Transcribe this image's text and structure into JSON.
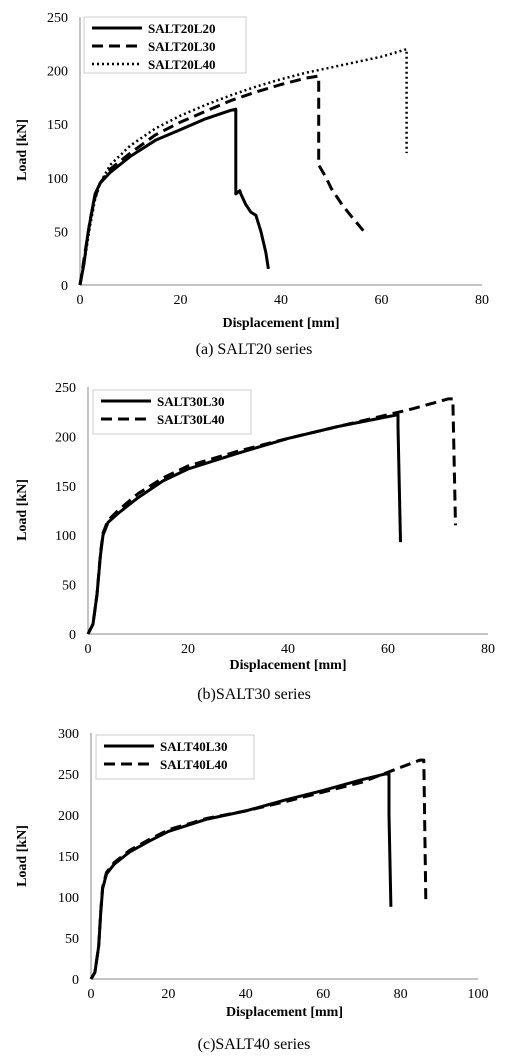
{
  "chart_data": [
    {
      "type": "line",
      "caption": "(a) SALT20 series",
      "xlabel": "Displacement [mm]",
      "ylabel": "Load [kN]",
      "xlim": [
        0,
        80
      ],
      "ylim": [
        0,
        250
      ],
      "xticks": [
        "0",
        "20",
        "40",
        "60",
        "80"
      ],
      "yticks": [
        "0",
        "50",
        "100",
        "150",
        "200",
        "250"
      ],
      "grid": false,
      "legend_position": "top-left",
      "series": [
        {
          "name": "SALT20L20",
          "style": "solid",
          "x": [
            0,
            0.8,
            1.5,
            2.2,
            3,
            4,
            6,
            10,
            15,
            20,
            25,
            30,
            31,
            31,
            31.8,
            32,
            33,
            34,
            35,
            36,
            37,
            37.5
          ],
          "y": [
            0,
            20,
            45,
            65,
            85,
            95,
            105,
            120,
            135,
            145,
            155,
            163,
            164,
            85,
            88,
            85,
            75,
            68,
            65,
            50,
            30,
            15
          ]
        },
        {
          "name": "SALT20L30",
          "style": "dashed",
          "x": [
            0,
            1,
            2,
            3,
            4,
            6,
            10,
            15,
            20,
            25,
            30,
            35,
            40,
            45,
            47.5,
            47.5,
            48,
            49,
            50,
            52,
            54,
            56.5
          ],
          "y": [
            0,
            30,
            60,
            82,
            95,
            108,
            123,
            140,
            152,
            162,
            172,
            180,
            187,
            193,
            195,
            112,
            108,
            100,
            90,
            76,
            64,
            50
          ]
        },
        {
          "name": "SALT20L40",
          "style": "dotted",
          "x": [
            0,
            1,
            2,
            3,
            4,
            6,
            10,
            15,
            20,
            25,
            30,
            35,
            40,
            45,
            50,
            55,
            60,
            65,
            65,
            65
          ],
          "y": [
            0,
            25,
            55,
            80,
            95,
            112,
            130,
            146,
            158,
            168,
            177,
            185,
            192,
            198,
            203,
            208,
            213,
            220,
            220,
            123
          ]
        }
      ]
    },
    {
      "type": "line",
      "caption": "(b)SALT30 series",
      "xlabel": "Displacement [mm]",
      "ylabel": "Load [kN]",
      "xlim": [
        0,
        80
      ],
      "ylim": [
        0,
        250
      ],
      "xticks": [
        "0",
        "20",
        "40",
        "60",
        "80"
      ],
      "yticks": [
        "0",
        "50",
        "100",
        "150",
        "200",
        "250"
      ],
      "grid": false,
      "legend_position": "top-left",
      "series": [
        {
          "name": "SALT30L30",
          "style": "solid",
          "x": [
            0,
            1,
            1.8,
            2.5,
            3,
            4,
            6,
            10,
            15,
            20,
            30,
            40,
            50,
            60,
            62,
            62,
            62.5
          ],
          "y": [
            0,
            10,
            40,
            80,
            100,
            113,
            122,
            138,
            155,
            167,
            183,
            198,
            210,
            220,
            222,
            210,
            93
          ]
        },
        {
          "name": "SALT30L40",
          "style": "dashed",
          "x": [
            0,
            1,
            1.8,
            2.5,
            3,
            4,
            6,
            10,
            15,
            20,
            30,
            40,
            50,
            60,
            65,
            70,
            72,
            73,
            73,
            73.5
          ],
          "y": [
            0,
            10,
            40,
            82,
            102,
            115,
            125,
            142,
            158,
            170,
            185,
            198,
            210,
            222,
            228,
            235,
            238,
            238,
            230,
            110
          ]
        }
      ]
    },
    {
      "type": "line",
      "caption": "(c)SALT40 series",
      "xlabel": "Displacement [mm]",
      "ylabel": "Load [kN]",
      "xlim": [
        0,
        100
      ],
      "ylim": [
        0,
        300
      ],
      "xticks": [
        "0",
        "20",
        "40",
        "60",
        "80",
        "100"
      ],
      "yticks": [
        "0",
        "50",
        "100",
        "150",
        "200",
        "250",
        "300"
      ],
      "grid": false,
      "legend_position": "top-left",
      "series": [
        {
          "name": "SALT40L30",
          "style": "solid",
          "x": [
            0,
            1,
            2,
            2.5,
            3,
            4,
            6,
            10,
            15,
            20,
            30,
            40,
            50,
            60,
            70,
            76,
            77,
            77,
            77.5
          ],
          "y": [
            0,
            8,
            40,
            80,
            110,
            128,
            140,
            155,
            168,
            180,
            195,
            205,
            218,
            230,
            243,
            250,
            250,
            200,
            88
          ]
        },
        {
          "name": "SALT40L40",
          "style": "dashed",
          "x": [
            0,
            1,
            2,
            2.5,
            3,
            4,
            6,
            10,
            15,
            20,
            30,
            40,
            50,
            60,
            70,
            80,
            85,
            86,
            86.5
          ],
          "y": [
            0,
            8,
            40,
            82,
            112,
            130,
            142,
            157,
            170,
            182,
            196,
            205,
            216,
            228,
            240,
            258,
            267,
            267,
            97
          ]
        }
      ]
    }
  ]
}
